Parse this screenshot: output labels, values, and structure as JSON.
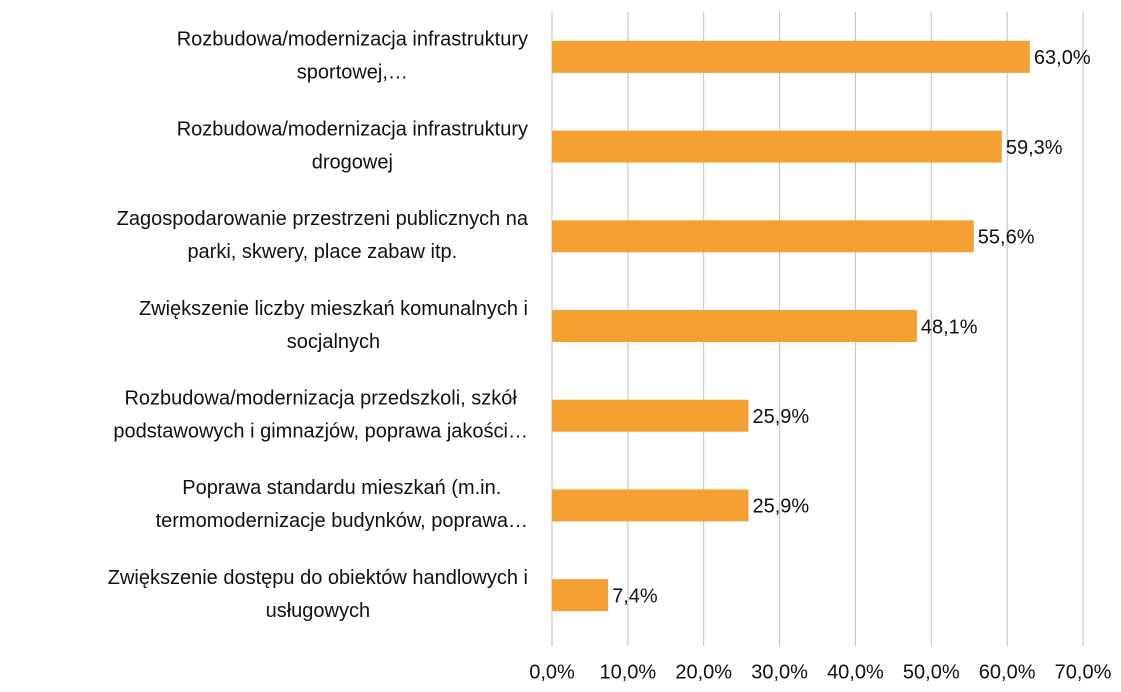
{
  "chart_data": {
    "type": "bar",
    "orientation": "horizontal",
    "categories": [
      [
        "Rozbudowa/modernizacja infrastruktury",
        "sportowej,…"
      ],
      [
        "Rozbudowa/modernizacja infrastruktury",
        "drogowej"
      ],
      [
        "Zagospodarowanie przestrzeni publicznych na",
        "parki, skwery, place zabaw itp."
      ],
      [
        "Zwiększenie liczby mieszkań komunalnych i",
        "socjalnych"
      ],
      [
        "Rozbudowa/modernizacja przedszkoli, szkół",
        "podstawowych i gimnazjów, poprawa jakości…"
      ],
      [
        "Poprawa standardu mieszkań (m.in.",
        "termomodernizacje budynków, poprawa…"
      ],
      [
        "Zwiększenie dostępu do obiektów handlowych i",
        "usługowych"
      ]
    ],
    "values": [
      63.0,
      59.3,
      55.6,
      48.1,
      25.9,
      25.9,
      7.4
    ],
    "value_labels": [
      "63,0%",
      "59,3%",
      "55,6%",
      "48,1%",
      "25,9%",
      "25,9%",
      "7,4%"
    ],
    "color": "#f4a033",
    "xlim": [
      0,
      70
    ],
    "xticks": [
      {
        "value": 0,
        "label": "0,0%"
      },
      {
        "value": 10,
        "label": "10,0%"
      },
      {
        "value": 20,
        "label": "20,0%"
      },
      {
        "value": 30,
        "label": "30,0%"
      },
      {
        "value": 40,
        "label": "40,0%"
      },
      {
        "value": 50,
        "label": "50,0%"
      },
      {
        "value": 60,
        "label": "60,0%"
      },
      {
        "value": 70,
        "label": "70,0%"
      }
    ],
    "grid": true
  }
}
